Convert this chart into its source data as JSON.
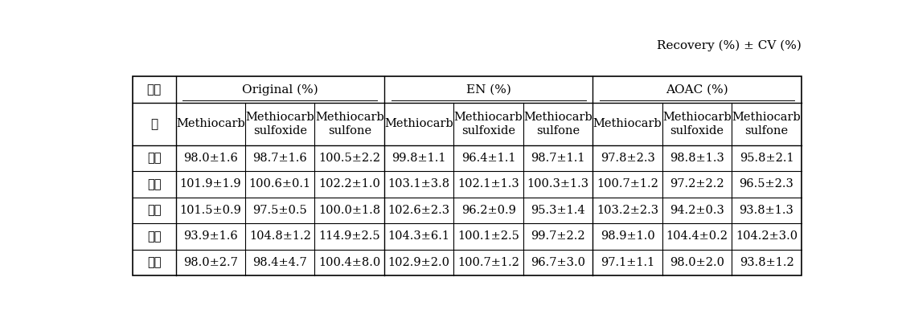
{
  "caption": "Recovery (%) ± CV (%)",
  "col_groups": [
    {
      "label": "Original (%)",
      "span": 3
    },
    {
      "label": "EN (%)",
      "span": 3
    },
    {
      "label": "AOAC (%)",
      "span": 3
    }
  ],
  "row_header_line1": "농산",
  "row_header_line2": "물",
  "sub_headers": [
    [
      "Methiocarb"
    ],
    [
      "Methiocarb",
      "sulfoxide"
    ],
    [
      "Methiocarb",
      "sulfone"
    ],
    [
      "Methiocarb"
    ],
    [
      "Methiocarb",
      "sulfoxide"
    ],
    [
      "Methiocarb",
      "sulfone"
    ],
    [
      "Methiocarb"
    ],
    [
      "Methiocarb",
      "sulfoxide"
    ],
    [
      "Methiocarb",
      "sulfone"
    ]
  ],
  "rows": [
    {
      "label": "감자",
      "values": [
        "98.0±1.6",
        "98.7±1.6",
        "100.5±2.2",
        "99.8±1.1",
        "96.4±1.1",
        "98.7±1.1",
        "97.8±2.3",
        "98.8±1.3",
        "95.8±2.1"
      ]
    },
    {
      "label": "고추",
      "values": [
        "101.9±1.9",
        "100.6±0.1",
        "102.2±1.0",
        "103.1±3.8",
        "102.1±1.3",
        "100.3±1.3",
        "100.7±1.2",
        "97.2±2.2",
        "96.5±2.3"
      ]
    },
    {
      "label": "감귈",
      "values": [
        "101.5±0.9",
        "97.5±0.5",
        "100.0±1.8",
        "102.6±2.3",
        "96.2±0.9",
        "95.3±1.4",
        "103.2±2.3",
        "94.2±0.3",
        "93.8±1.3"
      ]
    },
    {
      "label": "대두",
      "values": [
        "93.9±1.6",
        "104.8±1.2",
        "114.9±2.5",
        "104.3±6.1",
        "100.1±2.5",
        "99.7±2.2",
        "98.9±1.0",
        "104.4±0.2",
        "104.2±3.0"
      ]
    },
    {
      "label": "현미",
      "values": [
        "98.0±2.7",
        "98.4±4.7",
        "100.4±8.0",
        "102.9±2.0",
        "100.7±1.2",
        "96.7±3.0",
        "97.1±1.1",
        "98.0±2.0",
        "93.8±1.2"
      ]
    }
  ],
  "font_size": 10.5,
  "caption_font_size": 11,
  "header_font_size": 11,
  "bg_color": "white",
  "line_color": "black"
}
